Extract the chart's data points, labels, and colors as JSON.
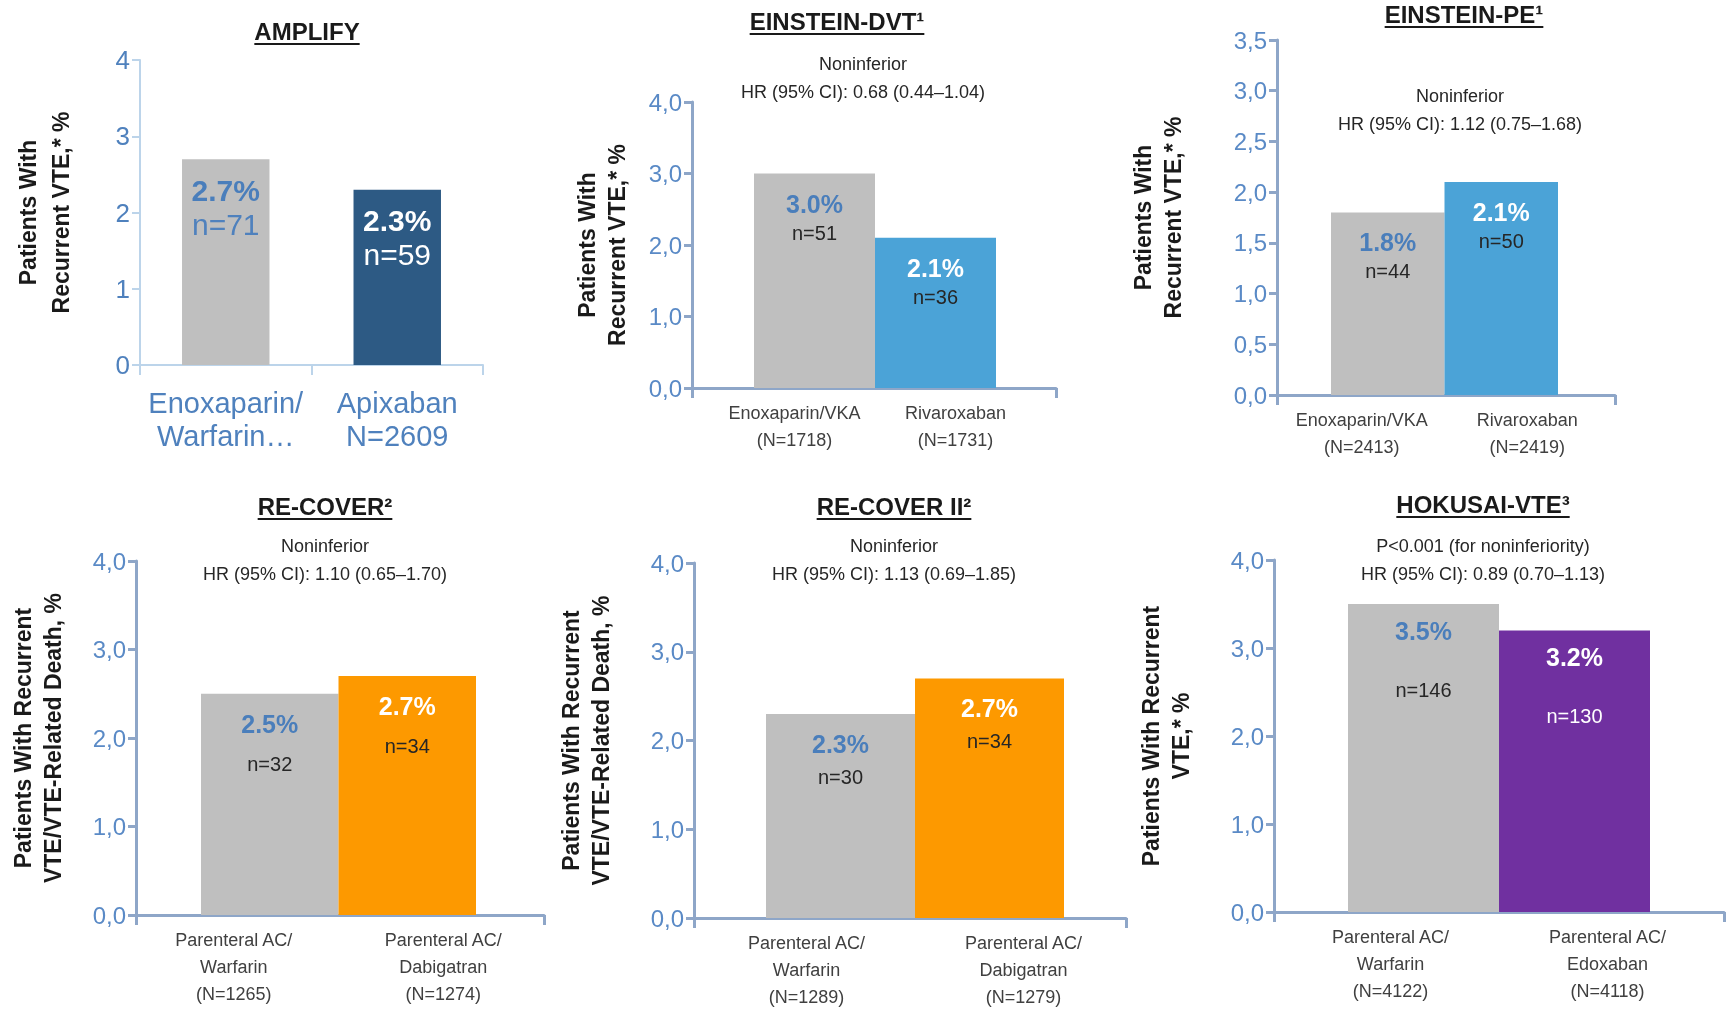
{
  "chart_data": [
    {
      "type": "bar",
      "title": "AMPLIFY",
      "ylabel": "Patients With\nRecurrent VTE,* %",
      "categories": [
        "Enoxaparin/\nWarfarin…",
        "Apixaban\nN=2609"
      ],
      "values": [
        2.7,
        2.3
      ],
      "colors": [
        "#bfbfbf",
        "#2d5a84"
      ],
      "value_labels": [
        "2.7%\nn=71",
        "2.3%\nn=59"
      ],
      "ylim": [
        0,
        4
      ],
      "yticks": [
        0,
        1,
        2,
        3,
        4
      ]
    },
    {
      "type": "bar",
      "title": "EINSTEIN-DVT¹",
      "subtitle": "Noninferior\nHR (95% CI): 0.68 (0.44–1.04)",
      "ylabel": "Patients With\nRecurrent VTE,* %",
      "categories": [
        "Enoxaparin/VKA\n(N=1718)",
        "Rivaroxaban\n(N=1731)"
      ],
      "values": [
        3.0,
        2.1
      ],
      "colors": [
        "#bfbfbf",
        "#4ba3d7"
      ],
      "value_labels": [
        "3.0%\nn=51",
        "2.1%\nn=36"
      ],
      "ylim": [
        0,
        4
      ],
      "yticks": [
        {
          "value": 0,
          "label": "0,0"
        },
        {
          "value": 1,
          "label": "1,0"
        },
        {
          "value": 2,
          "label": "2,0"
        },
        {
          "value": 3,
          "label": "3,0"
        },
        {
          "value": 4,
          "label": "4,0"
        }
      ]
    },
    {
      "type": "bar",
      "title": "EINSTEIN-PE¹",
      "subtitle": "Noninferior\nHR (95% CI): 1.12 (0.75–1.68)",
      "ylabel": "Patients With\nRecurrent VTE,* %",
      "categories": [
        "Enoxaparin/VKA\n(N=2413)",
        "Rivaroxaban\n(N=2419)"
      ],
      "values": [
        1.8,
        2.1
      ],
      "colors": [
        "#bfbfbf",
        "#4ba3d7"
      ],
      "value_labels": [
        "1.8%\nn=44",
        "2.1%\nn=50"
      ],
      "ylim": [
        0,
        3.5
      ],
      "yticks": [
        {
          "value": 0,
          "label": "0,0"
        },
        {
          "value": 0.5,
          "label": "0,5"
        },
        {
          "value": 1,
          "label": "1,0"
        },
        {
          "value": 1.5,
          "label": "1,5"
        },
        {
          "value": 2,
          "label": "2,0"
        },
        {
          "value": 2.5,
          "label": "2,5"
        },
        {
          "value": 3,
          "label": "3,0"
        },
        {
          "value": 3.5,
          "label": "3,5"
        }
      ]
    },
    {
      "type": "bar",
      "title": "RE-COVER²",
      "subtitle": "Noninferior\nHR (95% CI): 1.10 (0.65–1.70)",
      "ylabel": "Patients With Recurrent\nVTE/VTE-Related Death, %",
      "categories": [
        "Parenteral AC/\nWarfarin\n(N=1265)",
        "Parenteral AC/\nDabigatran\n(N=1274)"
      ],
      "values": [
        2.5,
        2.7
      ],
      "colors": [
        "#bfbfbf",
        "#fd9900"
      ],
      "value_labels": [
        "2.5%\nn=32",
        "2.7%\nn=34"
      ],
      "ylim": [
        0,
        4
      ],
      "yticks": [
        {
          "value": 0,
          "label": "0,0"
        },
        {
          "value": 1,
          "label": "1,0"
        },
        {
          "value": 2,
          "label": "2,0"
        },
        {
          "value": 3,
          "label": "3,0"
        },
        {
          "value": 4,
          "label": "4,0"
        }
      ]
    },
    {
      "type": "bar",
      "title": "RE-COVER II²",
      "subtitle": "Noninferior\nHR (95% CI): 1.13 (0.69–1.85)",
      "ylabel": "Patients With Recurrent\nVTE/VTE-Related Death, %",
      "categories": [
        "Parenteral AC/\nWarfarin\n(N=1289)",
        "Parenteral AC/\nDabigatran\n(N=1279)"
      ],
      "values": [
        2.3,
        2.7
      ],
      "colors": [
        "#bfbfbf",
        "#fd9900"
      ],
      "value_labels": [
        "2.3%\nn=30",
        "2.7%\nn=34"
      ],
      "ylim": [
        0,
        4
      ],
      "yticks": [
        {
          "value": 0,
          "label": "0,0"
        },
        {
          "value": 1,
          "label": "1,0"
        },
        {
          "value": 2,
          "label": "2,0"
        },
        {
          "value": 3,
          "label": "3,0"
        },
        {
          "value": 4,
          "label": "4,0"
        }
      ]
    },
    {
      "type": "bar",
      "title": "HOKUSAI-VTE³",
      "subtitle": "P<0.001 (for noninferiority)\nHR (95% CI): 0.89 (0.70–1.13)",
      "ylabel": "Patients With Recurrent\nVTE,* %",
      "categories": [
        "Parenteral AC/\nWarfarin\n(N=4122)",
        "Parenteral AC/\nEdoxaban\n(N=4118)"
      ],
      "values": [
        3.5,
        3.2
      ],
      "colors": [
        "#bfbfbf",
        "#7030a0"
      ],
      "value_labels": [
        "3.5%\nn=146",
        "3.2%\nn=130"
      ],
      "ylim": [
        0,
        4
      ],
      "yticks": [
        {
          "value": 0,
          "label": "0,0"
        },
        {
          "value": 1,
          "label": "1,0"
        },
        {
          "value": 2,
          "label": "2,0"
        },
        {
          "value": 3,
          "label": "3,0"
        },
        {
          "value": 4,
          "label": "4,0"
        }
      ]
    }
  ]
}
